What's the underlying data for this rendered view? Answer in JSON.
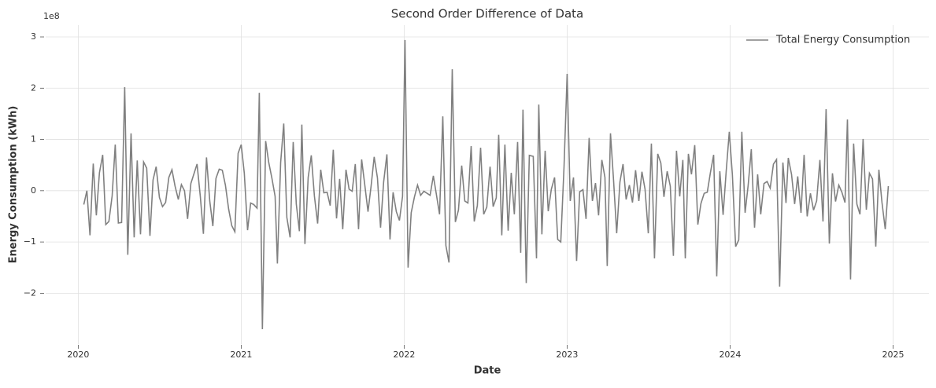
{
  "chart_data": {
    "type": "line",
    "title": "Second Order Difference of Data",
    "xlabel": "Date",
    "ylabel": "Energy Consumption (kWh)",
    "y_multiplier": "1e8",
    "xlim": [
      2019.8,
      2025.22
    ],
    "ylim": [
      -2.99,
      3.23
    ],
    "xticks": [
      2020,
      2021,
      2022,
      2023,
      2024,
      2025
    ],
    "yticks": [
      {
        "value": -2,
        "label": "−2"
      },
      {
        "value": -1,
        "label": "−1"
      },
      0,
      1,
      2,
      3
    ],
    "grid": true,
    "legend": "upper right",
    "x": [
      2020.034,
      2020.053,
      2020.072,
      2020.092,
      2020.111,
      2020.13,
      2020.15,
      2020.169,
      2020.188,
      2020.208,
      2020.227,
      2020.246,
      2020.266,
      2020.285,
      2020.304,
      2020.324,
      2020.343,
      2020.362,
      2020.382,
      2020.401,
      2020.42,
      2020.44,
      2020.459,
      2020.478,
      2020.498,
      2020.517,
      2020.536,
      2020.556,
      2020.575,
      2020.594,
      2020.614,
      2020.633,
      2020.652,
      2020.671,
      2020.691,
      2020.71,
      2020.729,
      2020.749,
      2020.768,
      2020.787,
      2020.807,
      2020.826,
      2020.845,
      2020.865,
      2020.884,
      2020.903,
      2020.923,
      2020.942,
      2020.961,
      2020.981,
      2021.0,
      2021.019,
      2021.039,
      2021.058,
      2021.077,
      2021.097,
      2021.111,
      2021.13,
      2021.15,
      2021.169,
      2021.188,
      2021.208,
      2021.222,
      2021.242,
      2021.261,
      2021.28,
      2021.3,
      2021.319,
      2021.338,
      2021.357,
      2021.372,
      2021.391,
      2021.411,
      2021.43,
      2021.449,
      2021.469,
      2021.488,
      2021.507,
      2021.527,
      2021.546,
      2021.565,
      2021.585,
      2021.604,
      2021.623,
      2021.643,
      2021.662,
      2021.681,
      2021.7,
      2021.72,
      2021.739,
      2021.758,
      2021.778,
      2021.797,
      2021.816,
      2021.836,
      2021.855,
      2021.874,
      2021.894,
      2021.913,
      2021.932,
      2021.952,
      2021.971,
      2021.99,
      2022.005,
      2022.024,
      2022.043,
      2022.063,
      2022.082,
      2022.101,
      2022.121,
      2022.14,
      2022.159,
      2022.179,
      2022.198,
      2022.217,
      2022.237,
      2022.256,
      2022.275,
      2022.295,
      2022.314,
      2022.333,
      2022.353,
      2022.372,
      2022.391,
      2022.411,
      2022.43,
      2022.449,
      2022.469,
      2022.488,
      2022.507,
      2022.527,
      2022.546,
      2022.565,
      2022.58,
      2022.599,
      2022.618,
      2022.638,
      2022.657,
      2022.676,
      2022.696,
      2022.715,
      2022.729,
      2022.749,
      2022.768,
      2022.792,
      2022.812,
      2022.826,
      2022.845,
      2022.865,
      2022.884,
      2022.903,
      2022.923,
      2022.942,
      2022.961,
      2022.981,
      2023.0,
      2023.019,
      2023.039,
      2023.058,
      2023.077,
      2023.097,
      2023.116,
      2023.135,
      2023.155,
      2023.174,
      2023.193,
      2023.213,
      2023.232,
      2023.246,
      2023.266,
      2023.285,
      2023.304,
      2023.324,
      2023.343,
      2023.362,
      2023.382,
      2023.401,
      2023.42,
      2023.44,
      2023.459,
      2023.478,
      2023.498,
      2023.517,
      2023.536,
      2023.556,
      2023.575,
      2023.594,
      2023.614,
      2023.633,
      2023.652,
      2023.671,
      2023.691,
      2023.71,
      2023.725,
      2023.744,
      2023.763,
      2023.783,
      2023.802,
      2023.821,
      2023.841,
      2023.86,
      2023.879,
      2023.899,
      2023.918,
      2023.937,
      2023.957,
      2023.976,
      2023.995,
      2024.014,
      2024.034,
      2024.053,
      2024.072,
      2024.092,
      2024.111,
      2024.13,
      2024.15,
      2024.169,
      2024.188,
      2024.208,
      2024.227,
      2024.246,
      2024.266,
      2024.285,
      2024.304,
      2024.324,
      2024.343,
      2024.357,
      2024.377,
      2024.396,
      2024.415,
      2024.435,
      2024.454,
      2024.473,
      2024.493,
      2024.512,
      2024.531,
      2024.551,
      2024.57,
      2024.589,
      2024.609,
      2024.628,
      2024.647,
      2024.667,
      2024.686,
      2024.705,
      2024.72,
      2024.739,
      2024.758,
      2024.778,
      2024.797,
      2024.816,
      2024.836,
      2024.855,
      2024.874,
      2024.894,
      2024.913,
      2024.932,
      2024.952,
      2024.971
    ],
    "series": [
      {
        "name": "Total Energy Consumption",
        "color": "#808080",
        "values": [
          -0.27,
          0,
          -0.87,
          0.53,
          -0.48,
          0.35,
          0.7,
          -0.66,
          -0.6,
          -0.1,
          0.9,
          -0.63,
          -0.62,
          2.02,
          -1.25,
          1.12,
          -0.91,
          0.59,
          -0.85,
          0.56,
          0.44,
          -0.88,
          0.21,
          0.47,
          -0.13,
          -0.31,
          -0.23,
          0.26,
          0.41,
          0.09,
          -0.17,
          0.12,
          0,
          -0.55,
          0.14,
          0.33,
          0.52,
          -0.11,
          -0.84,
          0.65,
          -0.2,
          -0.69,
          0.24,
          0.42,
          0.4,
          0.11,
          -0.36,
          -0.68,
          -0.8,
          0.73,
          0.9,
          0.34,
          -0.77,
          -0.24,
          -0.27,
          -0.34,
          1.91,
          -2.7,
          0.97,
          0.55,
          0.25,
          -0.11,
          -1.42,
          0.55,
          1.31,
          -0.52,
          -0.91,
          0.95,
          -0.26,
          -0.79,
          1.29,
          -1.04,
          0.26,
          0.69,
          -0.1,
          -0.64,
          0.41,
          -0.04,
          -0.03,
          -0.29,
          0.8,
          -0.54,
          0.23,
          -0.75,
          0.41,
          0.03,
          -0.01,
          0.52,
          -0.75,
          0.61,
          0.12,
          -0.41,
          0.09,
          0.66,
          0.25,
          -0.72,
          0.17,
          0.71,
          -0.95,
          -0.03,
          -0.41,
          -0.58,
          -0.11,
          2.94,
          -1.5,
          -0.43,
          -0.12,
          0.11,
          -0.09,
          -0.01,
          -0.05,
          -0.09,
          0.29,
          -0.08,
          -0.46,
          1.45,
          -1.07,
          -1.4,
          2.37,
          -0.61,
          -0.38,
          0.49,
          -0.2,
          -0.24,
          0.87,
          -0.6,
          -0.29,
          0.84,
          -0.46,
          -0.32,
          0.47,
          -0.31,
          -0.14,
          1.09,
          -0.87,
          0.9,
          -0.78,
          0.35,
          -0.46,
          0.95,
          -1.21,
          1.58,
          -1.8,
          0.69,
          0.67,
          -1.32,
          1.68,
          -0.85,
          0.78,
          -0.4,
          0.03,
          0.26,
          -0.95,
          -1.0,
          0.47,
          2.28,
          -0.2,
          0.26,
          -1.37,
          -0.02,
          0.02,
          -0.55,
          1.03,
          -0.2,
          0.15,
          -0.48,
          0.6,
          0.26,
          -1.47,
          1.12,
          0.2,
          -0.83,
          0.17,
          0.52,
          -0.17,
          0.11,
          -0.23,
          0.4,
          -0.2,
          0.37,
          0.03,
          -0.83,
          0.92,
          -1.32,
          0.72,
          0.54,
          -0.12,
          0.38,
          0.09,
          -1.27,
          0.78,
          -0.11,
          0.6,
          -1.32,
          0.72,
          0.32,
          0.89,
          -0.66,
          -0.25,
          -0.05,
          -0.03,
          0.35,
          0.7,
          -1.67,
          0.38,
          -0.47,
          0.38,
          1.15,
          0.31,
          -1.09,
          -0.96,
          1.15,
          -0.43,
          0.11,
          0.81,
          -0.72,
          0.32,
          -0.46,
          0.14,
          0.18,
          0.05,
          0.52,
          0.61,
          -1.87,
          0.55,
          -0.24,
          0.64,
          0.32,
          -0.26,
          0.28,
          -0.43,
          0.7,
          -0.5,
          -0.05,
          -0.38,
          -0.2,
          0.6,
          -0.6,
          1.59,
          -1.03,
          0.34,
          -0.21,
          0.11,
          -0.03,
          -0.23,
          1.39,
          -1.73,
          0.92,
          -0.26,
          -0.46,
          1.01,
          -0.37,
          0.34,
          0.23,
          -1.09,
          0.41,
          -0.23,
          -0.75,
          0.09
        ]
      }
    ]
  }
}
